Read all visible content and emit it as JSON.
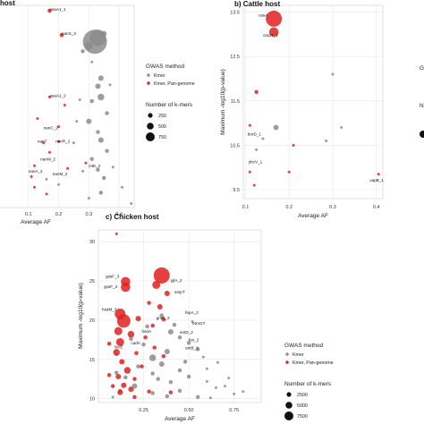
{
  "chart_data": [
    {
      "id": "a",
      "type": "scatter",
      "title": "host",
      "xlabel": "Average AF",
      "ylabel": "",
      "xlim": [
        0.0,
        0.45
      ],
      "ylim": [
        5.0,
        20.0
      ],
      "xticks": [
        "0.1",
        "0.2",
        "0.3",
        "0.4"
      ],
      "xtick_values": [
        0.1,
        0.2,
        0.3,
        0.4
      ],
      "grid": true,
      "series": [
        {
          "name": "Kmer",
          "color": "#8c8c8c",
          "points": [
            [
              0.32,
              17.3,
              18
            ],
            [
              0.33,
              17.6,
              12
            ],
            [
              0.3,
              17.0,
              6
            ],
            [
              0.35,
              17.9,
              4
            ],
            [
              0.28,
              16.6,
              3
            ],
            [
              0.34,
              14.6,
              4
            ],
            [
              0.33,
              14.0,
              4
            ],
            [
              0.34,
              13.2,
              5
            ],
            [
              0.31,
              12.9,
              3
            ],
            [
              0.36,
              12.0,
              3
            ],
            [
              0.3,
              11.4,
              4
            ],
            [
              0.33,
              10.6,
              3
            ],
            [
              0.34,
              10.0,
              4
            ],
            [
              0.36,
              9.2,
              3
            ],
            [
              0.31,
              8.6,
              3
            ],
            [
              0.33,
              7.8,
              3
            ],
            [
              0.35,
              7.2,
              3
            ],
            [
              0.28,
              7.7,
              2
            ],
            [
              0.25,
              9.8,
              2
            ],
            [
              0.26,
              11.4,
              2
            ],
            [
              0.38,
              8.0,
              2
            ],
            [
              0.41,
              6.5,
              2
            ],
            [
              0.44,
              5.3,
              2
            ],
            [
              0.34,
              6.1,
              3
            ],
            [
              0.3,
              5.7,
              2
            ],
            [
              0.2,
              6.7,
              2
            ],
            [
              0.16,
              7.1,
              2
            ],
            [
              0.31,
              15.8,
              2
            ],
            [
              0.37,
              14.1,
              2
            ],
            [
              0.27,
              13.0,
              2
            ]
          ]
        },
        {
          "name": "Kmer, Pan-genome",
          "color": "#e02020",
          "points": [
            [
              0.17,
              19.6,
              3
            ],
            [
              0.21,
              17.8,
              3
            ],
            [
              0.17,
              13.2,
              2
            ],
            [
              0.13,
              11.6,
              2
            ],
            [
              0.2,
              11.0,
              2
            ],
            [
              0.15,
              9.8,
              2
            ],
            [
              0.17,
              9.1,
              2
            ],
            [
              0.12,
              8.1,
              2
            ],
            [
              0.11,
              7.3,
              2
            ],
            [
              0.12,
              6.5,
              2
            ],
            [
              0.16,
              6.0,
              2
            ],
            [
              0.29,
              8.3,
              2
            ],
            [
              0.22,
              12.6,
              2
            ],
            [
              0.2,
              9.9,
              2
            ],
            [
              0.23,
              7.9,
              2
            ]
          ]
        }
      ],
      "annotations": [
        {
          "label": "asaA1_1",
          "x": 0.17,
          "y": 19.6
        },
        {
          "label": "nanS_3",
          "x": 0.21,
          "y": 17.8
        },
        {
          "label": "asaA1_2",
          "x": 0.17,
          "y": 13.2
        },
        {
          "label": "nanC_2",
          "x": 0.15,
          "y": 10.8
        },
        {
          "label": "nanT",
          "x": 0.13,
          "y": 9.8
        },
        {
          "label": "nanR_2",
          "x": 0.19,
          "y": 9.8
        },
        {
          "label": "nanM_2",
          "x": 0.14,
          "y": 8.5
        },
        {
          "label": "nanA_2",
          "x": 0.1,
          "y": 7.6
        },
        {
          "label": "nanM_2",
          "x": 0.18,
          "y": 7.4
        },
        {
          "label": "intE_2",
          "x": 0.3,
          "y": 8.0
        }
      ]
    },
    {
      "id": "b",
      "type": "scatter",
      "title": "b) Cattle host",
      "xlabel": "Average AF",
      "ylabel": "Maximum -log10(p-value)",
      "xlim": [
        0.095,
        0.415
      ],
      "ylim": [
        9.3,
        13.65
      ],
      "xticks": [
        "0.1",
        "0.2",
        "0.3",
        "0.4"
      ],
      "xtick_values": [
        0.1,
        0.2,
        0.3,
        0.4
      ],
      "yticks": [
        "9.5",
        "10.5",
        "11.5",
        "12.5",
        "13.5"
      ],
      "ytick_values": [
        9.5,
        10.5,
        11.5,
        12.5,
        13.5
      ],
      "grid": true,
      "series": [
        {
          "name": "Kmer",
          "color": "#8c8c8c",
          "points": [
            [
              0.3,
              12.1,
              2
            ],
            [
              0.17,
              10.9,
              4
            ],
            [
              0.32,
              10.9,
              2
            ],
            [
              0.285,
              10.6,
              2
            ],
            [
              0.14,
              10.65,
              2
            ],
            [
              0.125,
              10.4,
              2
            ]
          ]
        },
        {
          "name": "Kmer, Pan-genome",
          "color": "#e02020",
          "points": [
            [
              0.165,
              13.35,
              12
            ],
            [
              0.165,
              13.05,
              7
            ],
            [
              0.125,
              11.7,
              3
            ],
            [
              0.11,
              10.95,
              2
            ],
            [
              0.11,
              9.9,
              2
            ],
            [
              0.2,
              9.9,
              2
            ],
            [
              0.405,
              9.85,
              2
            ],
            [
              0.21,
              10.5,
              2
            ],
            [
              0.12,
              9.6,
              2
            ]
          ]
        }
      ],
      "annotations": [
        {
          "label": "casA",
          "x": 0.13,
          "y": 13.4
        },
        {
          "label": "ompT_1",
          "x": 0.14,
          "y": 12.95
        },
        {
          "label": "borD_1",
          "x": 0.105,
          "y": 10.72
        },
        {
          "label": "ybcV_1",
          "x": 0.107,
          "y": 10.1
        },
        {
          "label": "vapB_1",
          "x": 0.385,
          "y": 9.68
        }
      ]
    },
    {
      "id": "c",
      "type": "scatter",
      "title": "c) Chicken host",
      "xlabel": "Average AF",
      "ylabel": "Maximum -log10(p-value)",
      "xlim": [
        0.0,
        0.9
      ],
      "ylim": [
        9.5,
        31.5
      ],
      "xticks": [
        "0.25",
        "0.50",
        "0.75"
      ],
      "xtick_values": [
        0.25,
        0.5,
        0.75
      ],
      "yticks": [
        "10",
        "15",
        "20",
        "25",
        "30"
      ],
      "ytick_values": [
        10,
        15,
        20,
        25,
        30
      ],
      "grid": true,
      "series": [
        {
          "name": "Kmer",
          "color": "#8c8c8c",
          "points": [
            [
              0.4,
              18.5,
              4
            ],
            [
              0.45,
              17.8,
              3
            ],
            [
              0.5,
              17.1,
              3
            ],
            [
              0.55,
              16.3,
              3
            ],
            [
              0.42,
              19.4,
              3
            ],
            [
              0.38,
              16.0,
              4
            ],
            [
              0.3,
              15.2,
              5
            ],
            [
              0.35,
              14.4,
              4
            ],
            [
              0.45,
              13.6,
              3
            ],
            [
              0.5,
              12.8,
              3
            ],
            [
              0.6,
              12.2,
              2
            ],
            [
              0.65,
              11.4,
              2
            ],
            [
              0.7,
              11.6,
              2
            ],
            [
              0.75,
              10.6,
              2
            ],
            [
              0.8,
              10.9,
              2
            ],
            [
              0.55,
              10.2,
              3
            ],
            [
              0.3,
              10.7,
              3
            ],
            [
              0.2,
              11.6,
              4
            ],
            [
              0.15,
              12.7,
              3
            ],
            [
              0.1,
              13.3,
              3
            ],
            [
              0.12,
              11.0,
              3
            ],
            [
              0.25,
              16.9,
              3
            ],
            [
              0.18,
              17.6,
              3
            ],
            [
              0.27,
              19.2,
              3
            ],
            [
              0.35,
              20.6,
              3
            ],
            [
              0.48,
              14.7,
              3
            ],
            [
              0.4,
              12.1,
              3
            ],
            [
              0.6,
              13.8,
              2
            ],
            [
              0.52,
              19.8,
              2
            ],
            [
              0.58,
              15.3,
              2
            ],
            [
              0.08,
              10.2,
              2
            ],
            [
              0.1,
              15.6,
              2
            ],
            [
              0.45,
              11.0,
              3
            ],
            [
              0.33,
              12.5,
              3
            ],
            [
              0.62,
              10.1,
              2
            ],
            [
              0.72,
              12.6,
              2
            ],
            [
              0.66,
              14.6,
              2
            ],
            [
              0.22,
              14.1,
              3
            ],
            [
              0.3,
              13.2,
              3
            ],
            [
              0.38,
              10.3,
              3
            ]
          ]
        },
        {
          "name": "Kmer, Pan-genome",
          "color": "#e02020",
          "points": [
            [
              0.35,
              25.7,
              12
            ],
            [
              0.32,
              24.5,
              6
            ],
            [
              0.38,
              23.4,
              4
            ],
            [
              0.15,
              24.9,
              7
            ],
            [
              0.15,
              24.2,
              7
            ],
            [
              0.12,
              20.8,
              8
            ],
            [
              0.14,
              19.9,
              10
            ],
            [
              0.11,
              18.6,
              6
            ],
            [
              0.12,
              17.2,
              6
            ],
            [
              0.18,
              18.2,
              5
            ],
            [
              0.22,
              20.2,
              4
            ],
            [
              0.1,
              15.9,
              5
            ],
            [
              0.13,
              14.7,
              4
            ],
            [
              0.16,
              13.6,
              5
            ],
            [
              0.11,
              12.8,
              4
            ],
            [
              0.14,
              11.7,
              4
            ],
            [
              0.12,
              10.8,
              4
            ],
            [
              0.18,
              11.2,
              4
            ],
            [
              0.2,
              10.2,
              3
            ],
            [
              0.08,
              11.6,
              3
            ],
            [
              0.06,
              13.0,
              3
            ],
            [
              0.26,
              17.8,
              3
            ],
            [
              0.3,
              19.3,
              3
            ],
            [
              0.34,
              21.7,
              4
            ],
            [
              0.36,
              20.1,
              3
            ],
            [
              0.28,
              22.2,
              3
            ],
            [
              0.1,
              31.0,
              2
            ],
            [
              0.24,
              14.1,
              3
            ],
            [
              0.36,
              15.4,
              3
            ],
            [
              0.31,
              16.5,
              3
            ],
            [
              0.2,
              12.5,
              3
            ],
            [
              0.28,
              10.9,
              3
            ],
            [
              0.06,
              17.0,
              3
            ],
            [
              0.4,
              10.8,
              3
            ],
            [
              0.21,
              15.8,
              3
            ]
          ]
        }
      ],
      "annotations": [
        {
          "label": "ypsF_3",
          "x": 0.04,
          "y": 25.4
        },
        {
          "label": "ypsF_2",
          "x": 0.03,
          "y": 24.1
        },
        {
          "label": "yjlA_2",
          "x": 0.4,
          "y": 24.9
        },
        {
          "label": "ompT",
          "x": 0.42,
          "y": 23.4
        },
        {
          "label": "hsdM_3",
          "x": 0.02,
          "y": 21.2
        },
        {
          "label": "fepA_2",
          "x": 0.48,
          "y": 20.8
        },
        {
          "label": "gntR_2",
          "x": 0.32,
          "y": 20.1
        },
        {
          "label": "etrnGT",
          "x": 0.52,
          "y": 19.4
        },
        {
          "label": "fes_2",
          "x": 0.5,
          "y": 17.3
        },
        {
          "label": "entD_2",
          "x": 0.45,
          "y": 18.3
        },
        {
          "label": "entB_2",
          "x": 0.48,
          "y": 16.3
        },
        {
          "label": "hsdA",
          "x": 0.24,
          "y": 18.4
        },
        {
          "label": "cadA",
          "x": 0.18,
          "y": 16.9
        },
        {
          "label": "fecE",
          "x": 0.09,
          "y": 16.4
        }
      ]
    }
  ],
  "legends": [
    {
      "method_title": "GWAS method",
      "method_items": [
        {
          "label": "Kmer",
          "color": "#8c8c8c"
        },
        {
          "label": "Kmer, Pan-genome",
          "color": "#e02020"
        }
      ],
      "size_title": "Number of k-mers",
      "size_items": [
        {
          "label": "250",
          "r": 2.6
        },
        {
          "label": "500",
          "r": 3.8
        },
        {
          "label": "750",
          "r": 5.0
        }
      ]
    },
    {
      "method_title": "GWAS method",
      "method_items": [
        {
          "label": "Kmer",
          "color": "#8c8c8c"
        },
        {
          "label": "Kmer, Pan-genome",
          "color": "#e02020"
        }
      ],
      "size_title": "Number of k-mers",
      "size_items": [
        {
          "label": "2500",
          "r": 2.6
        },
        {
          "label": "5000",
          "r": 3.8
        },
        {
          "label": "7500",
          "r": 5.0
        }
      ]
    }
  ],
  "partial_legend": {
    "title_fragment": "G",
    "size_fragment": "N"
  }
}
